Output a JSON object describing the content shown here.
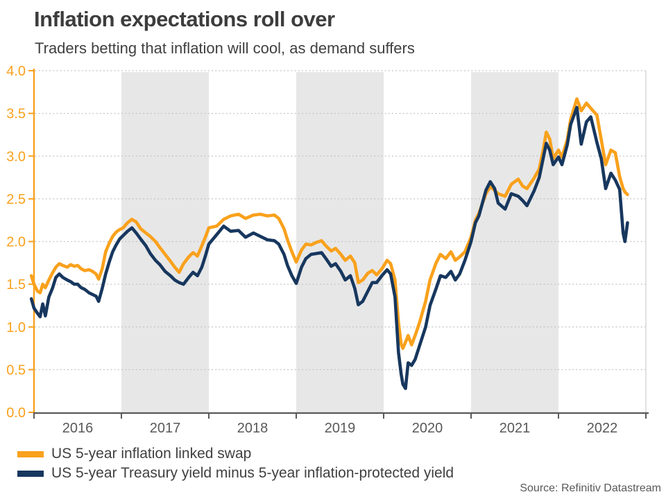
{
  "header": {
    "title": "Inflation expectations roll over",
    "subtitle": "Traders betting that inflation will cool, as demand suffers"
  },
  "source_note": "Source: Refinitiv Datastream",
  "colors": {
    "swap_orange": "#F9A11C",
    "breakeven_navy": "#17375E",
    "y_axis_orange": "#F9A11C",
    "x_axis_gray": "#595959",
    "gridline_gray": "#C4C4C4",
    "band_gray": "#E7E7E7",
    "right_border_gray": "#D9D9D9",
    "title_gray": "#3D3D3D",
    "text_gray": "#404040",
    "background": "#FFFFFF"
  },
  "chart_data": {
    "type": "line",
    "title": "Inflation expectations roll over",
    "subtitle": "Traders betting that inflation will cool, as demand suffers",
    "xlabel": "",
    "ylabel": "",
    "ylim": [
      0.0,
      4.0
    ],
    "ytick_step": 0.5,
    "ytick_labels": [
      "0.0",
      "0.5",
      "1.0",
      "1.5",
      "2.0",
      "2.5",
      "3.0",
      "3.5",
      "4.0"
    ],
    "x_axis_years": [
      2016,
      2017,
      2018,
      2019,
      2020,
      2021,
      2022
    ],
    "x_axis_range": [
      2016.0,
      2023.0
    ],
    "shaded_year_bands": [
      2017,
      2019,
      2021
    ],
    "grid": "horizontal-dotted",
    "legend_position": "bottom-left",
    "x": [
      2015.97,
      2016.0,
      2016.04,
      2016.07,
      2016.1,
      2016.13,
      2016.17,
      2016.21,
      2016.25,
      2016.29,
      2016.33,
      2016.38,
      2016.42,
      2016.46,
      2016.5,
      2016.54,
      2016.58,
      2016.63,
      2016.67,
      2016.71,
      2016.74,
      2016.78,
      2016.82,
      2016.86,
      2016.9,
      2016.94,
      2016.98,
      2017.02,
      2017.07,
      2017.12,
      2017.17,
      2017.22,
      2017.28,
      2017.33,
      2017.39,
      2017.44,
      2017.5,
      2017.56,
      2017.61,
      2017.66,
      2017.71,
      2017.77,
      2017.82,
      2017.87,
      2017.92,
      2017.96,
      2018.0,
      2018.09,
      2018.17,
      2018.25,
      2018.34,
      2018.42,
      2018.51,
      2018.59,
      2018.67,
      2018.75,
      2018.8,
      2018.86,
      2018.9,
      2018.95,
      2019.0,
      2019.06,
      2019.11,
      2019.17,
      2019.23,
      2019.29,
      2019.34,
      2019.4,
      2019.45,
      2019.51,
      2019.56,
      2019.62,
      2019.67,
      2019.71,
      2019.76,
      2019.82,
      2019.87,
      2019.92,
      2019.98,
      2020.04,
      2020.08,
      2020.13,
      2020.17,
      2020.2,
      2020.22,
      2020.25,
      2020.28,
      2020.32,
      2020.36,
      2020.41,
      2020.48,
      2020.53,
      2020.6,
      2020.65,
      2020.71,
      2020.77,
      2020.82,
      2020.87,
      2020.93,
      2021.0,
      2021.05,
      2021.09,
      2021.17,
      2021.22,
      2021.27,
      2021.31,
      2021.39,
      2021.46,
      2021.54,
      2021.59,
      2021.64,
      2021.72,
      2021.78,
      2021.83,
      2021.86,
      2021.9,
      2021.94,
      2022.0,
      2022.04,
      2022.1,
      2022.14,
      2022.21,
      2022.26,
      2022.32,
      2022.37,
      2022.44,
      2022.49,
      2022.54,
      2022.6,
      2022.65,
      2022.7,
      2022.74,
      2022.76,
      2022.79
    ],
    "series": [
      {
        "name": "US 5-year inflation linked swap",
        "color": "#F9A11C",
        "values": [
          1.6,
          1.5,
          1.42,
          1.4,
          1.5,
          1.46,
          1.55,
          1.63,
          1.7,
          1.74,
          1.72,
          1.7,
          1.73,
          1.71,
          1.72,
          1.68,
          1.66,
          1.67,
          1.65,
          1.62,
          1.56,
          1.68,
          1.88,
          1.98,
          2.06,
          2.11,
          2.14,
          2.16,
          2.22,
          2.26,
          2.23,
          2.15,
          2.1,
          2.06,
          2.0,
          1.93,
          1.85,
          1.77,
          1.7,
          1.64,
          1.74,
          1.82,
          1.87,
          1.83,
          1.95,
          2.05,
          2.16,
          2.18,
          2.26,
          2.3,
          2.32,
          2.27,
          2.31,
          2.32,
          2.3,
          2.31,
          2.27,
          2.15,
          2.02,
          1.88,
          1.76,
          1.9,
          1.97,
          1.96,
          1.99,
          2.01,
          1.95,
          1.89,
          1.92,
          1.85,
          1.78,
          1.83,
          1.75,
          1.52,
          1.55,
          1.63,
          1.66,
          1.61,
          1.68,
          1.78,
          1.74,
          1.55,
          1.05,
          0.8,
          0.75,
          0.82,
          0.9,
          0.79,
          0.9,
          1.05,
          1.3,
          1.55,
          1.75,
          1.85,
          1.8,
          1.88,
          1.78,
          1.82,
          1.88,
          2.05,
          2.25,
          2.33,
          2.56,
          2.64,
          2.6,
          2.56,
          2.53,
          2.67,
          2.73,
          2.65,
          2.62,
          2.74,
          2.85,
          3.1,
          3.28,
          3.2,
          2.97,
          3.07,
          2.99,
          3.19,
          3.43,
          3.67,
          3.53,
          3.62,
          3.56,
          3.48,
          3.19,
          2.9,
          3.07,
          3.04,
          2.76,
          2.62,
          2.58,
          2.55
        ]
      },
      {
        "name": "US 5-year Treasury yield minus 5-year inflation-protected yield",
        "color": "#17375E",
        "values": [
          1.33,
          1.22,
          1.16,
          1.12,
          1.27,
          1.13,
          1.35,
          1.45,
          1.58,
          1.62,
          1.58,
          1.55,
          1.53,
          1.5,
          1.5,
          1.46,
          1.44,
          1.4,
          1.38,
          1.36,
          1.3,
          1.45,
          1.62,
          1.76,
          1.88,
          1.96,
          2.03,
          2.07,
          2.12,
          2.16,
          2.1,
          2.03,
          1.95,
          1.86,
          1.78,
          1.73,
          1.65,
          1.6,
          1.55,
          1.52,
          1.5,
          1.58,
          1.64,
          1.6,
          1.7,
          1.83,
          1.97,
          2.08,
          2.18,
          2.12,
          2.13,
          2.05,
          2.1,
          2.06,
          2.02,
          2.01,
          1.97,
          1.85,
          1.72,
          1.6,
          1.51,
          1.7,
          1.8,
          1.85,
          1.86,
          1.87,
          1.8,
          1.71,
          1.74,
          1.65,
          1.55,
          1.6,
          1.45,
          1.26,
          1.3,
          1.42,
          1.52,
          1.52,
          1.6,
          1.67,
          1.62,
          1.35,
          0.7,
          0.45,
          0.33,
          0.28,
          0.58,
          0.55,
          0.62,
          0.78,
          1.0,
          1.25,
          1.45,
          1.6,
          1.58,
          1.65,
          1.55,
          1.62,
          1.78,
          2.0,
          2.22,
          2.3,
          2.6,
          2.7,
          2.62,
          2.45,
          2.38,
          2.56,
          2.53,
          2.48,
          2.42,
          2.59,
          2.75,
          3.0,
          3.15,
          3.07,
          2.9,
          2.99,
          2.9,
          3.13,
          3.37,
          3.57,
          3.14,
          3.4,
          3.46,
          3.16,
          2.97,
          2.62,
          2.8,
          2.72,
          2.61,
          2.1,
          2.0,
          2.22
        ]
      }
    ]
  }
}
